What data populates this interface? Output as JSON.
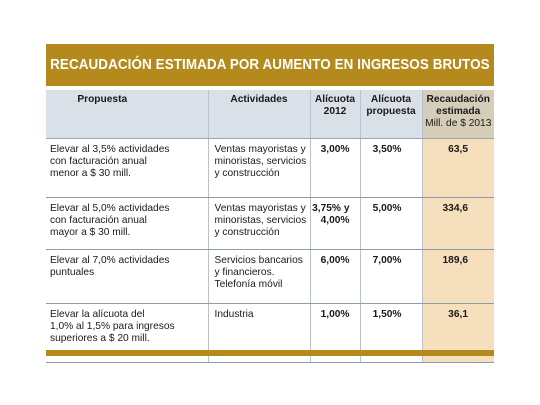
{
  "title": "RECAUDACIÓN ESTIMADA POR AUMENTO EN INGRESOS BRUTOS",
  "colors": {
    "gold": "#b48a1c",
    "header_bg": "#d9e0e8",
    "highlight": "#f5dfbd"
  },
  "headers": {
    "propuesta": "Propuesta",
    "actividades": "Actividades",
    "alicuota_2012": [
      "Alícuota",
      "2012"
    ],
    "alicuota_propuesta": [
      "Alícuota",
      "propuesta"
    ],
    "recaudacion": [
      "Recaudación",
      "estimada"
    ],
    "recaudacion_unit": "Mill. de $ 2013"
  },
  "rows": [
    {
      "propuesta": [
        "Elevar al 3,5% actividades",
        "con facturación anual",
        "menor a $ 30 mill."
      ],
      "actividades": [
        "Ventas mayoristas y",
        "minoristas, servicios",
        "y construcción"
      ],
      "alicuota_2012": [
        "3,00%"
      ],
      "alicuota_propuesta": "3,50%",
      "recaudacion": "63,5"
    },
    {
      "propuesta": [
        "Elevar al 5,0% actividades",
        "con facturación anual",
        "mayor a $ 30 mill."
      ],
      "actividades": [
        "Ventas mayoristas y",
        "minoristas, servicios",
        "y construcción"
      ],
      "alicuota_2012": [
        "3,75% y",
        "4,00%"
      ],
      "alicuota_propuesta": "5,00%",
      "recaudacion": "334,6"
    },
    {
      "propuesta": [
        "Elevar al 7,0% actividades",
        "puntuales"
      ],
      "actividades": [
        "Servicios bancarios",
        "y financieros.",
        "Telefonía móvil"
      ],
      "alicuota_2012": [
        "6,00%"
      ],
      "alicuota_propuesta": "7,00%",
      "recaudacion": "189,6"
    },
    {
      "propuesta": [
        "Elevar la alícuota del",
        "1,0% al 1,5% para ingresos",
        "superiores a $ 20 mill."
      ],
      "actividades": [
        "Industria"
      ],
      "alicuota_2012": [
        "1,00%"
      ],
      "alicuota_propuesta": "1,50%",
      "recaudacion": "36,1"
    }
  ]
}
